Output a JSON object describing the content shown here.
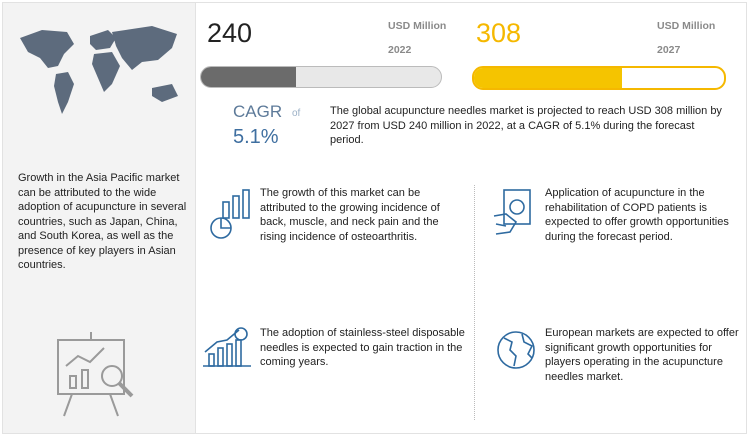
{
  "sidebar": {
    "text": "Growth in the Asia Pacific market can be attributed to the wide adoption of acupuncture in several countries, such as Japan, China, and South Korea, as well as the presence of key players in Asian countries."
  },
  "market": {
    "start": {
      "value": "240",
      "unit": "USD Million",
      "year": "2022"
    },
    "end": {
      "value": "308",
      "unit": "USD Million",
      "year": "2027"
    }
  },
  "cagr": {
    "label": "CAGR",
    "of": "of",
    "value": "5.1%"
  },
  "summary": "The global acupuncture needles market is projected to reach USD 308 million by 2027 from USD 240 million in 2022, at a CAGR of 5.1% during the forecast period.",
  "highlights": [
    "The growth of this market can be attributed to the growing incidence of back, muscle, and neck pain and the rising incidence of osteoarthritis.",
    "Application of acupuncture in the rehabilitation of COPD patients is expected to offer growth opportunities during the forecast period.",
    "The adoption of stainless-steel disposable needles is expected to gain traction in the coming years.",
    "European markets are expected to offer significant growth opportunities for players operating in the acupuncture needles market."
  ]
}
